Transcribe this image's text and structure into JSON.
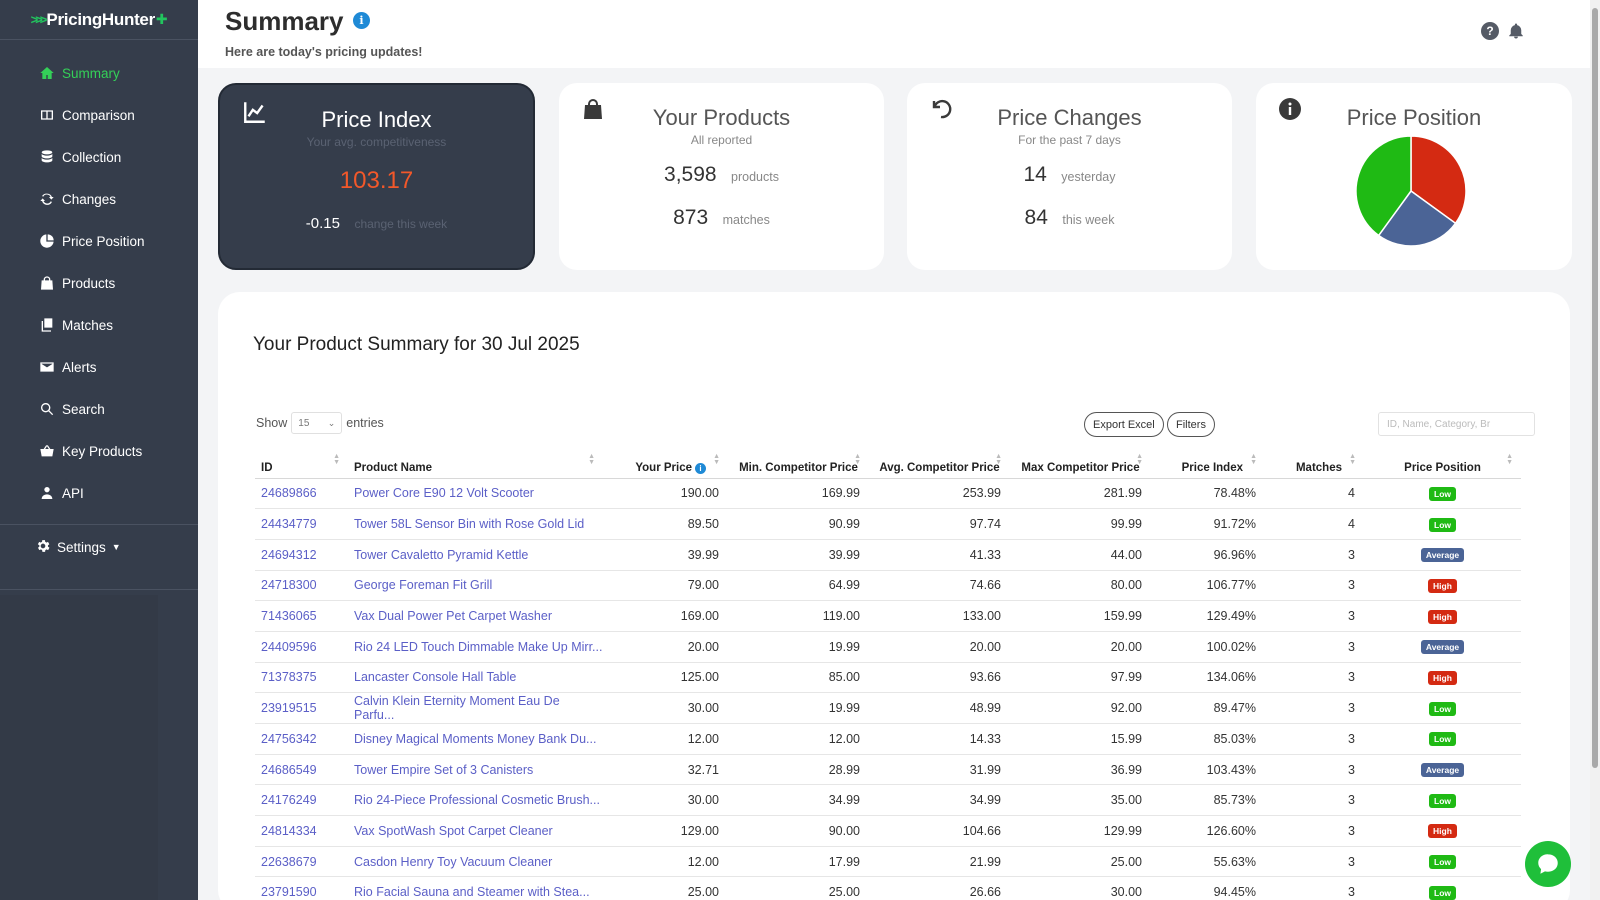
{
  "brand": {
    "name": "PricingHunter",
    "accent": "#22c55e"
  },
  "sidebar": {
    "items": [
      {
        "label": "Summary",
        "icon": "home-icon",
        "active": true
      },
      {
        "label": "Comparison",
        "icon": "comparison-icon"
      },
      {
        "label": "Collection",
        "icon": "database-icon"
      },
      {
        "label": "Changes",
        "icon": "sync-icon"
      },
      {
        "label": "Price Position",
        "icon": "pie-chart-icon"
      },
      {
        "label": "Products",
        "icon": "bag-icon"
      },
      {
        "label": "Matches",
        "icon": "copy-icon"
      },
      {
        "label": "Alerts",
        "icon": "envelope-icon"
      },
      {
        "label": "Search",
        "icon": "search-icon"
      },
      {
        "label": "Key Products",
        "icon": "basket-icon"
      },
      {
        "label": "API",
        "icon": "user-icon"
      }
    ],
    "settings_label": "Settings"
  },
  "header": {
    "title": "Summary",
    "subtitle": "Here are today's pricing updates!"
  },
  "cards": {
    "price_index": {
      "title": "Price Index",
      "sub": "Your avg. competitiveness",
      "value": "103.17",
      "change": "-0.15",
      "change_label": "change this week"
    },
    "your_products": {
      "title": "Your Products",
      "sub": "All reported",
      "products": "3,598",
      "products_label": "products",
      "matches": "873",
      "matches_label": "matches"
    },
    "price_changes": {
      "title": "Price Changes",
      "sub": "For the past 7 days",
      "yesterday": "14",
      "yesterday_label": "yesterday",
      "week": "84",
      "week_label": "this week"
    },
    "price_position": {
      "title": "Price Position"
    }
  },
  "chart_data": {
    "type": "pie",
    "title": "Price Position",
    "slices": [
      {
        "value": 35,
        "color": "#d42a12"
      },
      {
        "value": 25,
        "color": "#4b6496"
      },
      {
        "value": 40,
        "color": "#1fba14"
      }
    ]
  },
  "summary": {
    "title": "Your Product Summary for 30 Jul 2025",
    "show_label": "Show",
    "entries_value": "15",
    "entries_label": "entries",
    "export_label": "Export Excel",
    "filters_label": "Filters",
    "search_placeholder": "ID, Name, Category, Br"
  },
  "table": {
    "headers": [
      "ID",
      "Product Name",
      "Your Price",
      "Min. Competitor Price",
      "Avg. Competitor Price",
      "Max Competitor Price",
      "Price Index",
      "Matches",
      "Price Position"
    ],
    "rows": [
      [
        "24689866",
        "Power Core E90 12 Volt Scooter",
        "190.00",
        "169.99",
        "253.99",
        "281.99",
        "78.48%",
        "4",
        "Low"
      ],
      [
        "24434779",
        "Tower 58L Sensor Bin with Rose Gold Lid",
        "89.50",
        "90.99",
        "97.74",
        "99.99",
        "91.72%",
        "4",
        "Low"
      ],
      [
        "24694312",
        "Tower Cavaletto Pyramid Kettle",
        "39.99",
        "39.99",
        "41.33",
        "44.00",
        "96.96%",
        "3",
        "Average"
      ],
      [
        "24718300",
        "George Foreman Fit Grill",
        "79.00",
        "64.99",
        "74.66",
        "80.00",
        "106.77%",
        "3",
        "High"
      ],
      [
        "71436065",
        "Vax Dual Power Pet Carpet Washer",
        "169.00",
        "119.00",
        "133.00",
        "159.99",
        "129.49%",
        "3",
        "High"
      ],
      [
        "24409596",
        "Rio 24 LED Touch Dimmable Make Up Mirr...",
        "20.00",
        "19.99",
        "20.00",
        "20.00",
        "100.02%",
        "3",
        "Average"
      ],
      [
        "71378375",
        "Lancaster Console Hall Table",
        "125.00",
        "85.00",
        "93.66",
        "97.99",
        "134.06%",
        "3",
        "High"
      ],
      [
        "23919515",
        "Calvin Klein Eternity Moment Eau De Parfu...",
        "30.00",
        "19.99",
        "48.99",
        "92.00",
        "89.47%",
        "3",
        "Low"
      ],
      [
        "24756342",
        "Disney Magical Moments Money Bank Du...",
        "12.00",
        "12.00",
        "14.33",
        "15.99",
        "85.03%",
        "3",
        "Low"
      ],
      [
        "24686549",
        "Tower Empire Set of 3 Canisters",
        "32.71",
        "28.99",
        "31.99",
        "36.99",
        "103.43%",
        "3",
        "Average"
      ],
      [
        "24176249",
        "Rio 24-Piece Professional Cosmetic Brush...",
        "30.00",
        "34.99",
        "34.99",
        "35.00",
        "85.73%",
        "3",
        "Low"
      ],
      [
        "24814334",
        "Vax SpotWash Spot Carpet Cleaner",
        "129.00",
        "90.00",
        "104.66",
        "129.99",
        "126.60%",
        "3",
        "High"
      ],
      [
        "22638679",
        "Casdon Henry Toy Vacuum Cleaner",
        "12.00",
        "17.99",
        "21.99",
        "25.00",
        "55.63%",
        "3",
        "Low"
      ],
      [
        "23791590",
        "Rio Facial Sauna and Steamer with Stea...",
        "25.00",
        "25.00",
        "26.66",
        "30.00",
        "94.45%",
        "3",
        "Low"
      ]
    ],
    "badge_colors": {
      "Low": "#1fba14",
      "Average": "#4b6496",
      "High": "#d42a12"
    }
  }
}
